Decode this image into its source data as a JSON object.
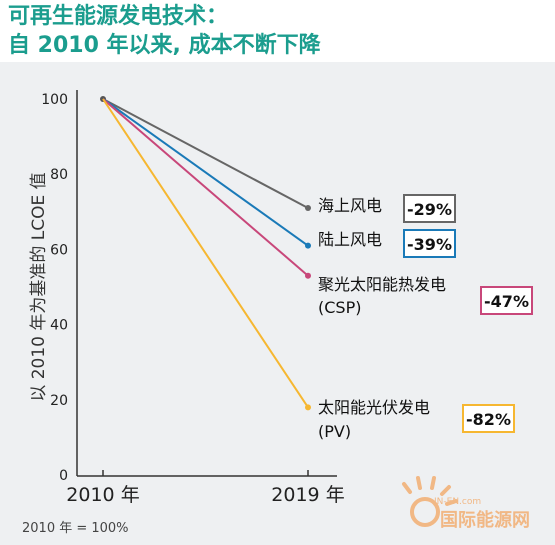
{
  "title_line1": "可再生能源发电技术：",
  "title_line2": "自  2010  年以来, 成本不断下降",
  "footnote": "2010 年 = 100%",
  "watermark": {
    "brand": "国际能源网",
    "domain": "IN-EN.com"
  },
  "chart_data": {
    "type": "line",
    "title": "可再生能源发电技术：自 2010 年以来, 成本不断下降",
    "x": [
      "2010 年",
      "2019 年"
    ],
    "ylabel": "以 2010 年为基准的 LCOE 值",
    "xlabel": "",
    "ylim": [
      0,
      100
    ],
    "yticks": [
      0,
      20,
      40,
      60,
      80,
      100
    ],
    "grid": false,
    "series": [
      {
        "name": "海上风电",
        "name2": "",
        "values": [
          100,
          71
        ],
        "change": "-29%",
        "color": "#666666"
      },
      {
        "name": "陆上风电",
        "name2": "",
        "values": [
          100,
          61
        ],
        "change": "-39%",
        "color": "#1a7ab8"
      },
      {
        "name": "聚光太阳能热发电",
        "name2": "(CSP)",
        "values": [
          100,
          53
        ],
        "change": "-47%",
        "color": "#c8477a"
      },
      {
        "name": "太阳能光伏发电",
        "name2": "(PV)",
        "values": [
          100,
          18
        ],
        "change": "-82%",
        "color": "#f6b731"
      }
    ]
  }
}
